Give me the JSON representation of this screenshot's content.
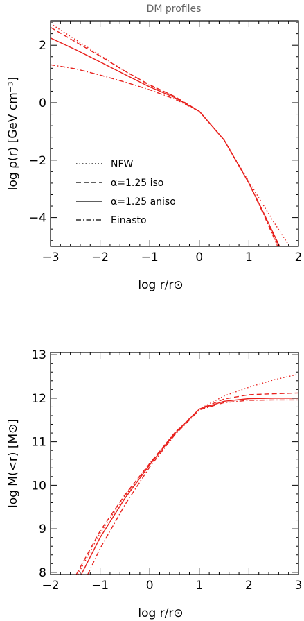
{
  "figure_title": "DM profiles",
  "colors": {
    "curve": "#e8201c",
    "axes": "#000000"
  },
  "chart_data": [
    {
      "type": "line",
      "xlabel": "log r/r⊙",
      "ylabel": "log ρ(r)  [GeV cm⁻³]",
      "xlim": [
        -3,
        2
      ],
      "ylim": [
        -5,
        2.85
      ],
      "xticks": [
        -3,
        -2,
        -1,
        0,
        1,
        2
      ],
      "yticks": [
        -4,
        -2,
        0,
        2
      ],
      "xtick_labels": [
        "−3",
        "−2",
        "−1",
        "0",
        "1",
        "2"
      ],
      "ytick_labels": [
        "−4",
        "−2",
        "0",
        "2"
      ],
      "legend_placement": "lower-left",
      "series": [
        {
          "name": "NFW",
          "style": "dotted",
          "x": [
            -3,
            -2.5,
            -2,
            -1.5,
            -1,
            -0.5,
            0,
            0.5,
            1,
            1.5,
            1.8
          ],
          "y": [
            2.75,
            2.2,
            1.65,
            1.1,
            0.6,
            0.22,
            -0.3,
            -1.3,
            -2.75,
            -4.15,
            -4.95
          ]
        },
        {
          "name": "α=1.25 iso",
          "style": "dashed",
          "x": [
            -3,
            -2.5,
            -2,
            -1.5,
            -1,
            -0.5,
            0,
            0.5,
            1,
            1.3,
            1.6
          ],
          "y": [
            2.62,
            2.12,
            1.62,
            1.1,
            0.62,
            0.22,
            -0.3,
            -1.3,
            -2.8,
            -3.85,
            -5.0
          ]
        },
        {
          "name": "α=1.25 aniso",
          "style": "solid",
          "x": [
            -3,
            -2.5,
            -2,
            -1.5,
            -1,
            -0.5,
            0,
            0.5,
            1,
            1.3,
            1.62
          ],
          "y": [
            2.25,
            1.85,
            1.42,
            0.98,
            0.55,
            0.18,
            -0.3,
            -1.3,
            -2.8,
            -3.85,
            -5.0
          ]
        },
        {
          "name": "Einasto",
          "style": "dashdot",
          "x": [
            -3,
            -2.5,
            -2,
            -1.5,
            -1,
            -0.5,
            0,
            0.5,
            1,
            1.3,
            1.58
          ],
          "y": [
            1.32,
            1.18,
            0.96,
            0.72,
            0.45,
            0.13,
            -0.3,
            -1.3,
            -2.8,
            -3.9,
            -5.0
          ]
        }
      ]
    },
    {
      "type": "line",
      "xlabel": "log r/r⊙",
      "ylabel": "log M(<r) [M⊙]",
      "xlim": [
        -2,
        3
      ],
      "ylim": [
        7.95,
        13.05
      ],
      "xticks": [
        -2,
        -1,
        0,
        1,
        2,
        3
      ],
      "yticks": [
        8,
        9,
        10,
        11,
        12,
        13
      ],
      "xtick_labels": [
        "−2",
        "−1",
        "0",
        "1",
        "2",
        "3"
      ],
      "ytick_labels": [
        "8",
        "9",
        "10",
        "11",
        "12",
        "13"
      ],
      "series": [
        {
          "name": "NFW",
          "style": "dotted",
          "x": [
            -1.45,
            -1,
            -0.5,
            0,
            0.5,
            1,
            1.5,
            2,
            2.5,
            3
          ],
          "y": [
            7.95,
            8.9,
            9.75,
            10.5,
            11.2,
            11.75,
            12.05,
            12.25,
            12.42,
            12.55
          ]
        },
        {
          "name": "α=1.25 iso",
          "style": "dashed",
          "x": [
            -1.48,
            -1,
            -0.5,
            0,
            0.5,
            1,
            1.5,
            2,
            2.5,
            3
          ],
          "y": [
            7.95,
            8.95,
            9.78,
            10.5,
            11.2,
            11.75,
            11.98,
            12.08,
            12.1,
            12.12
          ]
        },
        {
          "name": "α=1.25 aniso",
          "style": "solid",
          "x": [
            -1.38,
            -1,
            -0.5,
            0,
            0.5,
            1,
            1.5,
            2,
            2.5,
            3
          ],
          "y": [
            7.95,
            8.8,
            9.7,
            10.47,
            11.18,
            11.75,
            11.93,
            11.99,
            12.0,
            12.0
          ]
        },
        {
          "name": "Einasto",
          "style": "dashdot",
          "x": [
            -1.25,
            -1,
            -0.5,
            0,
            0.5,
            1,
            1.5,
            2,
            2.5,
            3
          ],
          "y": [
            7.95,
            8.55,
            9.55,
            10.42,
            11.15,
            11.73,
            11.9,
            11.95,
            11.96,
            11.96
          ]
        }
      ]
    }
  ]
}
